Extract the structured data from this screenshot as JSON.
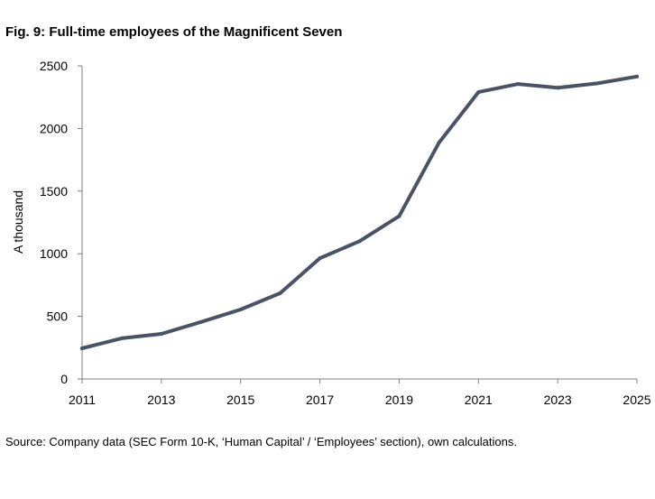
{
  "chart_data": {
    "type": "line",
    "title": "Fig. 9: Full-time employees of the Magnificent Seven",
    "ylabel": "A thousand",
    "xlabel": "",
    "source": "Source: Company data (SEC Form 10-K, ‘Human Capital’ / ‘Employees’ section), own calculations.",
    "x": [
      2011,
      2012,
      2013,
      2014,
      2015,
      2016,
      2017,
      2018,
      2019,
      2020,
      2021,
      2022,
      2023,
      2024,
      2025
    ],
    "series": [
      {
        "values": [
          245,
          325,
          360,
          455,
          555,
          685,
          965,
          1100,
          1300,
          1885,
          2290,
          2355,
          2325,
          2360,
          2415
        ],
        "color": "#4a5366"
      }
    ],
    "xlim": [
      2011,
      2025
    ],
    "ylim": [
      0,
      2500
    ],
    "xticks": [
      2011,
      2013,
      2015,
      2017,
      2019,
      2021,
      2023,
      2025
    ],
    "yticks": [
      0,
      500,
      1000,
      1500,
      2000,
      2500
    ],
    "grid": false,
    "legend": "none"
  }
}
